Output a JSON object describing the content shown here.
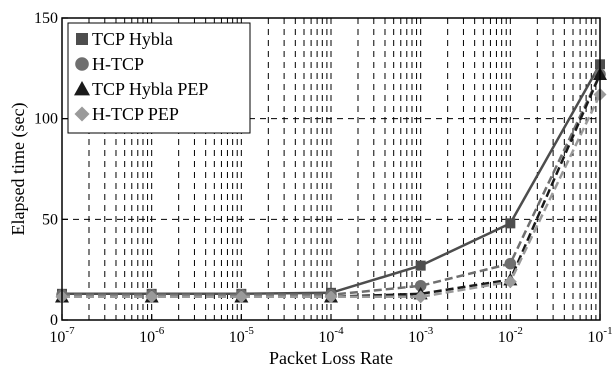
{
  "chart_data": {
    "type": "line",
    "title": "",
    "xlabel": "Packet Loss Rate",
    "ylabel": "Elapsed time (sec)",
    "x_scale": "log",
    "xlim": [
      1e-07,
      0.1
    ],
    "ylim": [
      0,
      150
    ],
    "x": [
      1e-07,
      1e-06,
      1e-05,
      0.0001,
      0.001,
      0.01,
      0.1
    ],
    "x_tick_labels": [
      {
        "base": "10",
        "exp": "-7"
      },
      {
        "base": "10",
        "exp": "-6"
      },
      {
        "base": "10",
        "exp": "-5"
      },
      {
        "base": "10",
        "exp": "-4"
      },
      {
        "base": "10",
        "exp": "-3"
      },
      {
        "base": "10",
        "exp": "-2"
      },
      {
        "base": "10",
        "exp": "-1"
      }
    ],
    "y_ticks": [
      0,
      50,
      100,
      150
    ],
    "grid": true,
    "legend_position": "top-left",
    "series": [
      {
        "name": "TCP Hybla",
        "values": [
          13,
          13,
          13,
          13.5,
          27,
          48,
          127
        ],
        "color": "#4d4d4d",
        "marker": "square",
        "dash": "solid"
      },
      {
        "name": "H-TCP",
        "values": [
          12.5,
          12.5,
          12.5,
          12.5,
          17,
          28,
          122
        ],
        "color": "#6f6f6f",
        "marker": "circle",
        "dash": "dashed"
      },
      {
        "name": "TCP Hybla PEP",
        "values": [
          11.5,
          11.5,
          11.5,
          11.5,
          13,
          20,
          122
        ],
        "color": "#1a1a1a",
        "marker": "triangle",
        "dash": "dashed"
      },
      {
        "name": "H-TCP PEP",
        "values": [
          11.5,
          11.5,
          11.5,
          11.5,
          11.5,
          19,
          112
        ],
        "color": "#9a9a9a",
        "marker": "diamond",
        "dash": "dashed"
      }
    ]
  }
}
